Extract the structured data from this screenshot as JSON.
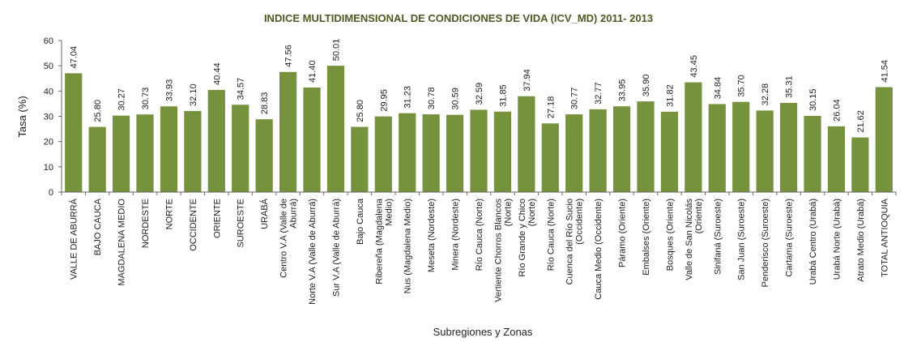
{
  "chart_data": {
    "type": "bar",
    "title": "INDICE MULTIDIMENSIONAL DE CONDICIONES DE VIDA (ICV_MD) 2011- 2013",
    "xlabel": "Subregiones y Zonas",
    "ylabel": "Tasa (%)",
    "ylim": [
      0,
      60
    ],
    "yticks": [
      "0",
      "10",
      "20",
      "30",
      "40",
      "50",
      "60"
    ],
    "grid": false,
    "bar_color": "#76923c",
    "categories": [
      "VALLE DE ABURRÁ",
      "BAJO CAUCA",
      "MAGDALENA MEDIO",
      "NORDESTE",
      "NORTE",
      "OCCIDENTE",
      "ORIENTE",
      "SUROESTE",
      "URABÁ",
      [
        "Centro V.A (Valle de",
        "Aburrá)"
      ],
      "Norte V.A (Valle de Aburrá)",
      "Sur V.A (Valle de Aburrá)",
      "Bajo Cauca",
      [
        "Ribereña  (Magdalena",
        "Medio)"
      ],
      "Nus  (Magdalena Medio)",
      "Meseta  (Nordeste)",
      "Minera  (Nordeste)",
      "Río Cauca  (Norte)",
      [
        "Vertiente Chorros Blancos",
        "(Norte)"
      ],
      [
        "Río Grande y Chico",
        "(Norte)"
      ],
      "Río Cauca (Norte)",
      [
        "Cuenca del Río Sucio",
        "(Occidente)"
      ],
      "Cauca Medio  (Occidente)",
      "Páramo   (Oriente)",
      "Embalses  (Oriente)",
      "Bosques  (Oriente)",
      [
        "Valle de San Nicolás",
        "(Oriente)"
      ],
      "Sinifaná  (Suroeste)",
      "San Juan  (Suroeste)",
      "Penderisco  (Suroeste)",
      "Cartama  (Suroeste)",
      "Urabá Centro  (Urabá)",
      "Urabá Norte  (Urabá)",
      "Atrato Medio  (Urabá)",
      "TOTAL ANTIOQUIA"
    ],
    "values": [
      47.04,
      25.8,
      30.27,
      30.73,
      33.93,
      32.1,
      40.44,
      34.57,
      28.83,
      47.56,
      41.4,
      50.01,
      25.8,
      29.95,
      31.23,
      30.78,
      30.59,
      32.59,
      31.85,
      37.94,
      27.18,
      30.77,
      32.77,
      33.95,
      35.9,
      31.82,
      43.45,
      34.84,
      35.7,
      32.28,
      35.31,
      30.15,
      26.04,
      21.62,
      41.54
    ],
    "value_labels": [
      "47.04",
      "25.80",
      "30.27",
      "30.73",
      "33.93",
      "32.10",
      "40.44",
      "34.57",
      "28.83",
      "47.56",
      "41.40",
      "50.01",
      "25.80",
      "29.95",
      "31.23",
      "30.78",
      "30.59",
      "32.59",
      "31.85",
      "37.94",
      "27.18",
      "30.77",
      "32.77",
      "33.95",
      "35.90",
      "31.82",
      "43.45",
      "34.84",
      "35.70",
      "32.28",
      "35.31",
      "30.15",
      "26.04",
      "21.62",
      "41.54"
    ]
  }
}
